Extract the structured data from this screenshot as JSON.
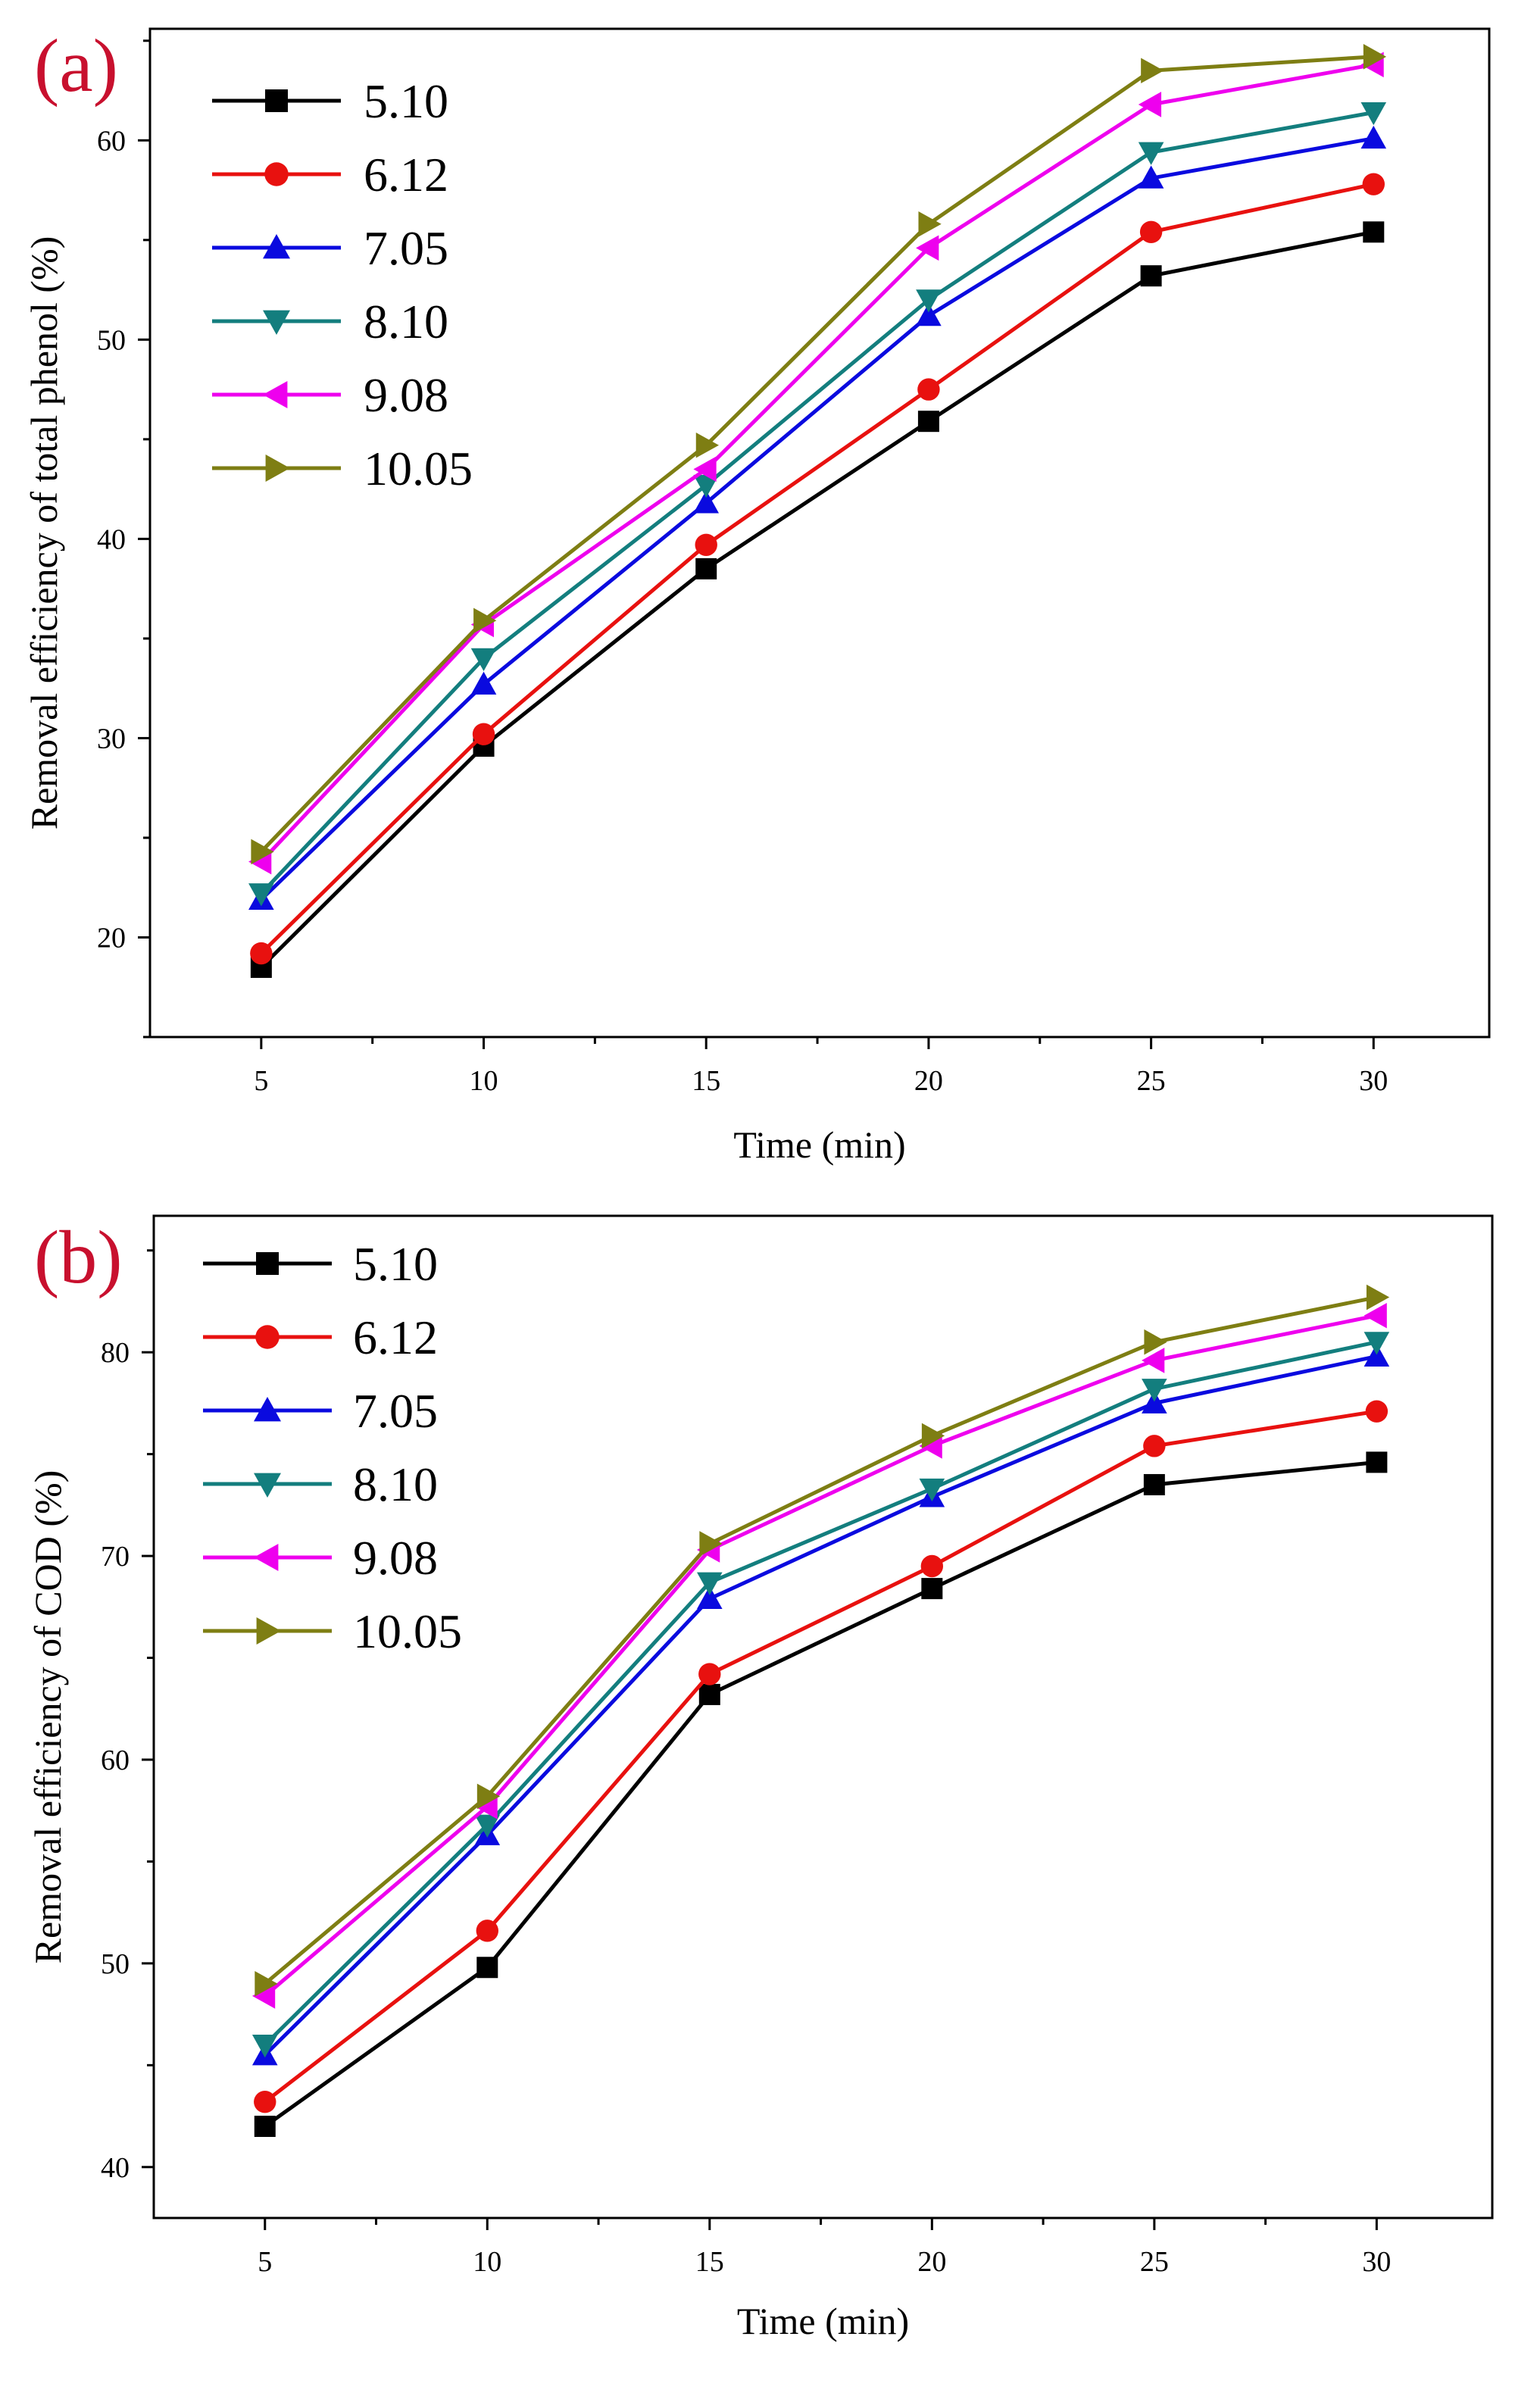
{
  "colors": {
    "s510": "#000000",
    "s612": "#e8110f",
    "s705": "#0a0adf",
    "s810": "#137e7e",
    "s908": "#ee00ee",
    "s1005": "#7e7e13",
    "panel_label": "#c8102e"
  },
  "chart_data": [
    {
      "type": "line",
      "panel_label": "(a)",
      "xlabel": "Time (min)",
      "ylabel": "Removal efficiency of total phenol (%)",
      "x": [
        5,
        10,
        15,
        20,
        25,
        30
      ],
      "x_ticks": [
        "5",
        "10",
        "15",
        "20",
        "25",
        "30"
      ],
      "y_ticks": [
        "20",
        "30",
        "40",
        "50",
        "60"
      ],
      "xlim": [
        2.5,
        32.6
      ],
      "ylim": [
        15,
        65.6
      ],
      "series": [
        {
          "name": "5.10",
          "marker": "square",
          "color_key": "s510",
          "values": [
            18.5,
            29.6,
            38.5,
            45.9,
            53.2,
            55.4
          ]
        },
        {
          "name": "6.12",
          "marker": "circle",
          "color_key": "s612",
          "values": [
            19.2,
            30.2,
            39.7,
            47.5,
            55.4,
            57.8
          ]
        },
        {
          "name": "7.05",
          "marker": "triangle-up",
          "color_key": "s705",
          "values": [
            21.9,
            32.7,
            41.8,
            51.2,
            58.1,
            60.1
          ]
        },
        {
          "name": "8.10",
          "marker": "triangle-down",
          "color_key": "s810",
          "values": [
            22.2,
            34.0,
            42.7,
            52.0,
            59.4,
            61.4
          ]
        },
        {
          "name": "9.08",
          "marker": "triangle-left",
          "color_key": "s908",
          "values": [
            23.8,
            35.7,
            43.5,
            54.6,
            61.8,
            63.8
          ]
        },
        {
          "name": "10.05",
          "marker": "triangle-right",
          "color_key": "s1005",
          "values": [
            24.3,
            35.9,
            44.7,
            55.8,
            63.5,
            64.2
          ]
        }
      ]
    },
    {
      "type": "line",
      "panel_label": "(b)",
      "xlabel": "Time (min)",
      "ylabel": "Removal efficiency of COD (%)",
      "x": [
        5,
        10,
        15,
        20,
        25,
        30
      ],
      "x_ticks": [
        "5",
        "10",
        "15",
        "20",
        "25",
        "30"
      ],
      "y_ticks": [
        "40",
        "50",
        "60",
        "70",
        "80"
      ],
      "xlim": [
        2.5,
        32.6
      ],
      "ylim": [
        37.5,
        86.7
      ],
      "series": [
        {
          "name": "5.10",
          "marker": "square",
          "color_key": "s510",
          "values": [
            42.0,
            49.8,
            63.2,
            68.4,
            73.5,
            74.6
          ]
        },
        {
          "name": "6.12",
          "marker": "circle",
          "color_key": "s612",
          "values": [
            43.2,
            51.6,
            64.2,
            69.5,
            75.4,
            77.1
          ]
        },
        {
          "name": "7.05",
          "marker": "triangle-up",
          "color_key": "s705",
          "values": [
            45.5,
            56.3,
            67.9,
            72.9,
            77.5,
            79.8
          ]
        },
        {
          "name": "8.10",
          "marker": "triangle-down",
          "color_key": "s810",
          "values": [
            46.0,
            56.8,
            68.7,
            73.3,
            78.2,
            80.5
          ]
        },
        {
          "name": "9.08",
          "marker": "triangle-left",
          "color_key": "s908",
          "values": [
            48.4,
            57.7,
            70.3,
            75.4,
            79.6,
            81.8
          ]
        },
        {
          "name": "10.05",
          "marker": "triangle-right",
          "color_key": "s1005",
          "values": [
            49.0,
            58.2,
            70.6,
            75.9,
            80.5,
            82.7
          ]
        }
      ]
    }
  ]
}
